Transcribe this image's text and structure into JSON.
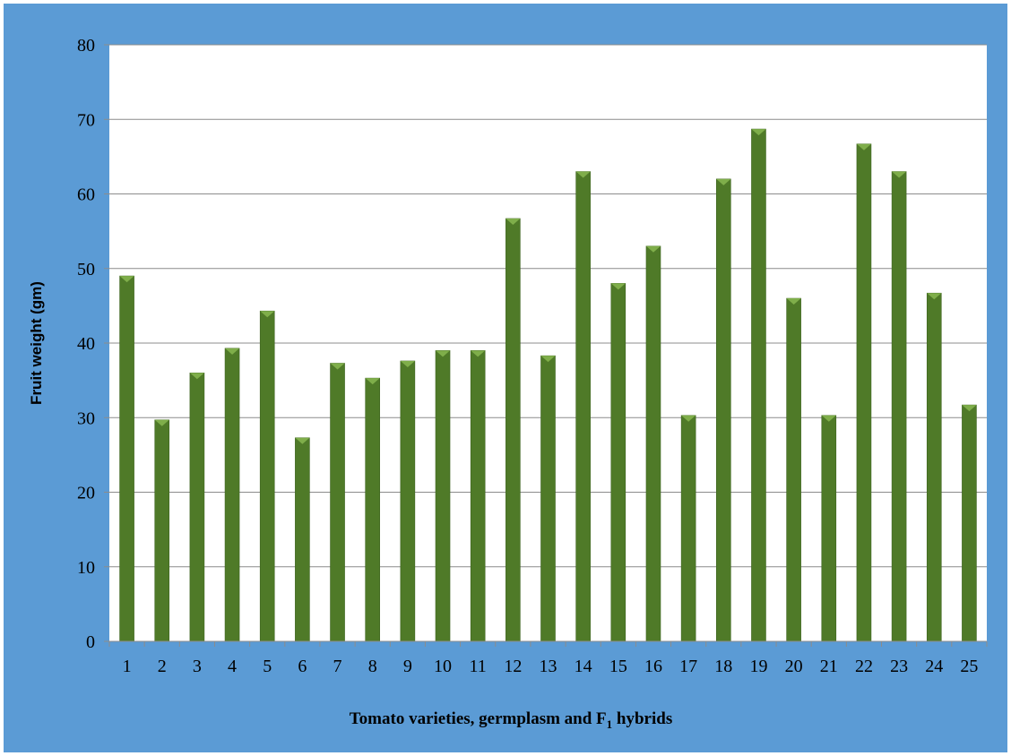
{
  "chart_data": {
    "type": "bar",
    "categories": [
      "1",
      "2",
      "3",
      "4",
      "5",
      "6",
      "7",
      "8",
      "9",
      "10",
      "11",
      "12",
      "13",
      "14",
      "15",
      "16",
      "17",
      "18",
      "19",
      "20",
      "21",
      "22",
      "23",
      "24",
      "25"
    ],
    "values": [
      49,
      29.7,
      36,
      39.3,
      44.3,
      27.3,
      37.3,
      35.3,
      37.6,
      39,
      39,
      56.7,
      38.3,
      63,
      48,
      53,
      30.3,
      62,
      68.7,
      46,
      30.3,
      66.7,
      63,
      46.7,
      31.7
    ],
    "xlabel_main": "Tomato varieties, germplasm and  F",
    "xlabel_sub": "1",
    "xlabel_tail": " hybrids",
    "ylabel": "Fruit weight (gm)",
    "ylim": [
      0,
      80
    ],
    "yticks": [
      "0",
      "10",
      "20",
      "30",
      "40",
      "50",
      "60",
      "70",
      "80"
    ],
    "grid": true,
    "legend": "none",
    "colors": {
      "background": "#5b9bd5",
      "plot_area": "#ffffff",
      "bar": "#4f7a28",
      "bar_highlight": "#7fae4a",
      "gridline": "#8c8c8c"
    }
  }
}
